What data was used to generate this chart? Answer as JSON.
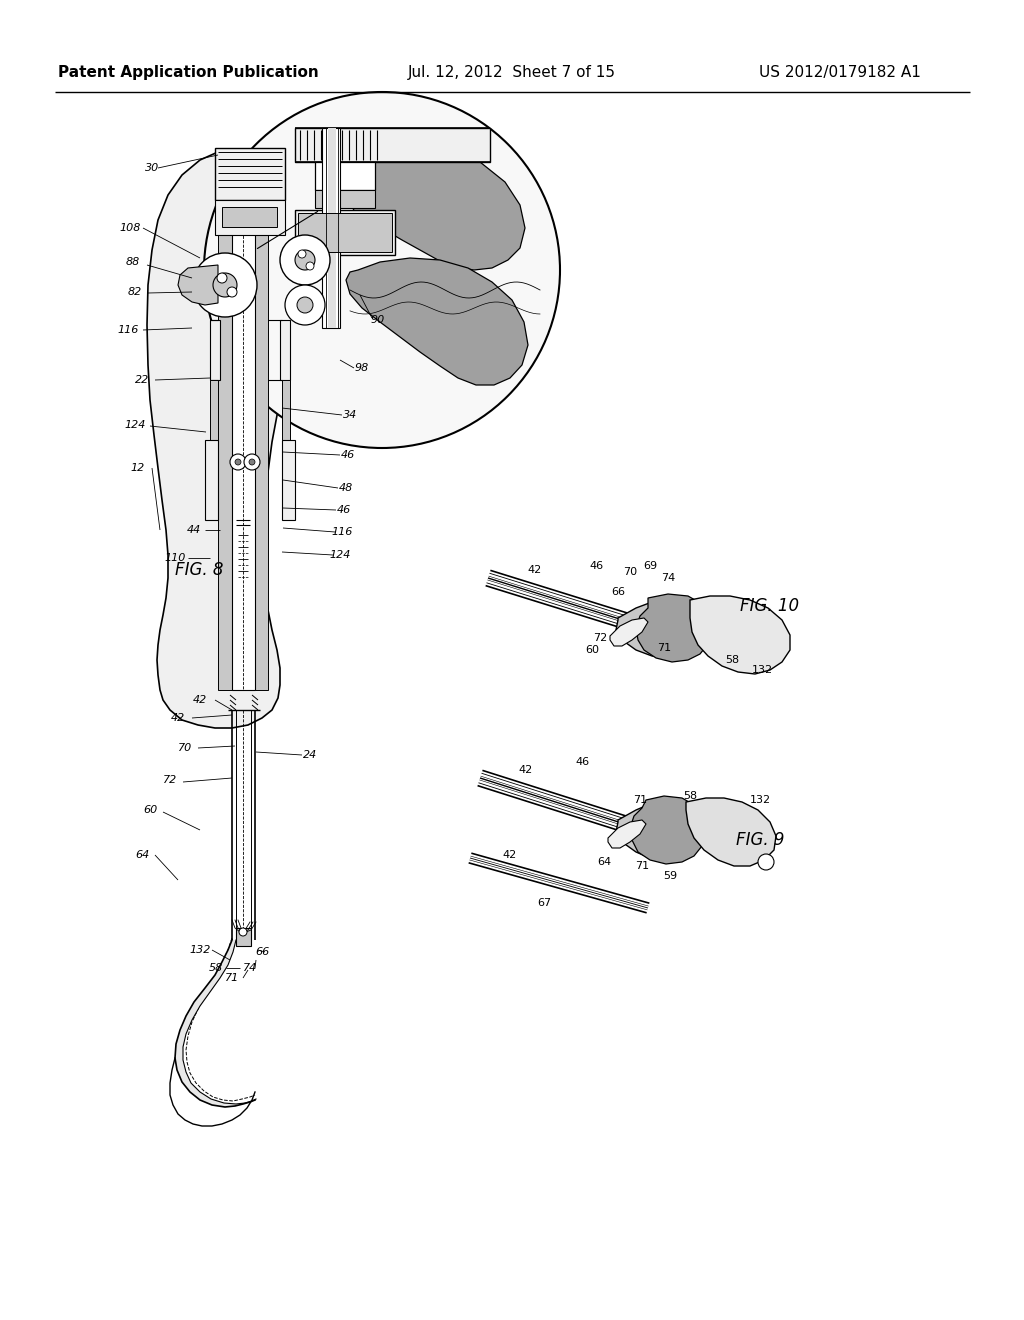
{
  "bg_color": "#ffffff",
  "header_left": "Patent Application Publication",
  "header_center": "Jul. 12, 2012  Sheet 7 of 15",
  "header_right": "US 2012/0179182 A1",
  "fig8_label": "FIG. 8",
  "fig9_label": "FIG. 9",
  "fig10_label": "FIG. 10",
  "fig_width": 10.24,
  "fig_height": 13.2,
  "dpi": 100,
  "line_color": "#000000",
  "gray_dark": "#808080",
  "gray_med": "#a0a0a0",
  "gray_light": "#c8c8c8",
  "gray_hatch": "#909090",
  "white": "#ffffff",
  "near_white": "#f0f0f0"
}
